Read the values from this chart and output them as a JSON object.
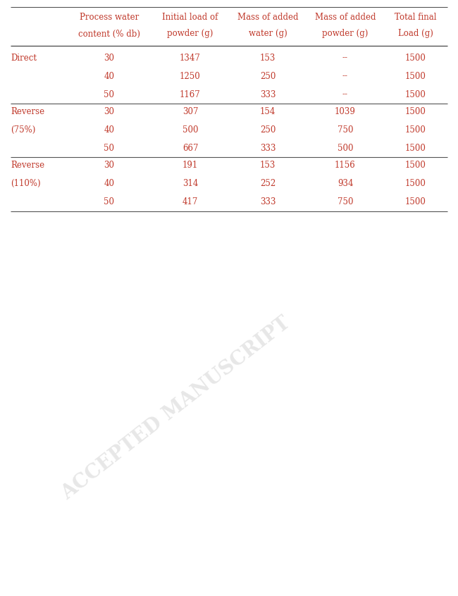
{
  "col_headers_line1": [
    "",
    "Process water",
    "Initial load of",
    "Mass of added",
    "Mass of added",
    "Total final"
  ],
  "col_headers_line2": [
    "",
    "content (% db)",
    "powder (g)",
    "water (g)",
    "powder (g)",
    "Load (g)"
  ],
  "rows": [
    {
      "group": "Direct",
      "subgroup": "",
      "pwc": "30",
      "init_load": "1347",
      "mass_water": "153",
      "mass_powder": "--",
      "total": "1500"
    },
    {
      "group": "",
      "subgroup": "",
      "pwc": "40",
      "init_load": "1250",
      "mass_water": "250",
      "mass_powder": "--",
      "total": "1500"
    },
    {
      "group": "",
      "subgroup": "",
      "pwc": "50",
      "init_load": "1167",
      "mass_water": "333",
      "mass_powder": "--",
      "total": "1500"
    },
    {
      "group": "Reverse",
      "subgroup": "(75%)",
      "pwc": "30",
      "init_load": "307",
      "mass_water": "154",
      "mass_powder": "1039",
      "total": "1500"
    },
    {
      "group": "",
      "subgroup": "",
      "pwc": "40",
      "init_load": "500",
      "mass_water": "250",
      "mass_powder": "750",
      "total": "1500"
    },
    {
      "group": "",
      "subgroup": "",
      "pwc": "50",
      "init_load": "667",
      "mass_water": "333",
      "mass_powder": "500",
      "total": "1500"
    },
    {
      "group": "Reverse",
      "subgroup": "(110%)",
      "pwc": "30",
      "init_load": "191",
      "mass_water": "153",
      "mass_powder": "1156",
      "total": "1500"
    },
    {
      "group": "",
      "subgroup": "",
      "pwc": "40",
      "init_load": "314",
      "mass_water": "252",
      "mass_powder": "934",
      "total": "1500"
    },
    {
      "group": "",
      "subgroup": "",
      "pwc": "50",
      "init_load": "417",
      "mass_water": "333",
      "mass_powder": "750",
      "total": "1500"
    }
  ],
  "text_color": "#c0392b",
  "line_color": "#555555",
  "background_color": "#ffffff",
  "watermark_text": "ACCEPTED MANUSCRIPT",
  "watermark_color": "#d0d0d0",
  "header_fontsize": 8.5,
  "data_fontsize": 8.5,
  "group_fontsize": 8.5
}
